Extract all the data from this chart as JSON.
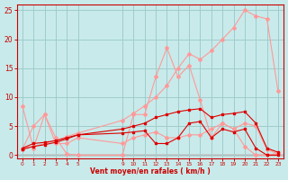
{
  "bg_color": "#c8eaea",
  "grid_color": "#a0cccc",
  "xlabel": "Vent moyen/en rafales ( km/h )",
  "ylim": [
    -0.5,
    26
  ],
  "xlim": [
    -0.5,
    23.5
  ],
  "yticks": [
    0,
    5,
    10,
    15,
    20,
    25
  ],
  "x_ticks": [
    0,
    1,
    2,
    3,
    4,
    5,
    9,
    10,
    11,
    12,
    13,
    14,
    15,
    16,
    17,
    18,
    19,
    20,
    21,
    22,
    23
  ],
  "line_light1_x": [
    0,
    1,
    2,
    3,
    4,
    5,
    9,
    10,
    11,
    12,
    13,
    14,
    15,
    16,
    17,
    18,
    19,
    20,
    21,
    22,
    23
  ],
  "line_light1_y": [
    8.5,
    1.2,
    7.0,
    3.0,
    0.2,
    0.0,
    0.0,
    7.0,
    7.0,
    13.5,
    18.5,
    13.5,
    15.5,
    9.5,
    3.0,
    5.5,
    4.5,
    1.5,
    0.0,
    0.0,
    0.3
  ],
  "line_light1_color": "#ff9999",
  "line_light2_x": [
    0,
    1,
    2,
    3,
    4,
    5,
    9,
    10,
    11,
    12,
    13,
    14,
    15,
    16,
    17,
    18,
    19,
    20,
    21,
    22,
    23
  ],
  "line_light2_y": [
    1.2,
    1.5,
    2.0,
    2.5,
    3.2,
    3.8,
    6.0,
    7.2,
    8.5,
    10.0,
    12.0,
    15.0,
    17.5,
    16.5,
    18.0,
    20.0,
    22.0,
    25.0,
    24.0,
    23.5,
    11.0
  ],
  "line_light2_color": "#ff9999",
  "line_med1_x": [
    0,
    1,
    2,
    3,
    4,
    5,
    9,
    10,
    11,
    12,
    13,
    14,
    15,
    16,
    17,
    18,
    19,
    20,
    21,
    22,
    23
  ],
  "line_med1_y": [
    1.0,
    5.0,
    7.0,
    2.0,
    2.0,
    3.0,
    2.0,
    3.0,
    3.5,
    4.0,
    3.0,
    3.0,
    3.5,
    3.5,
    4.5,
    5.5,
    4.5,
    5.5,
    5.0,
    1.0,
    0.2
  ],
  "line_med1_color": "#ff9999",
  "line_dark1_x": [
    0,
    1,
    2,
    3,
    4,
    5,
    9,
    10,
    11,
    12,
    13,
    14,
    15,
    16,
    17,
    18,
    19,
    20,
    21,
    22,
    23
  ],
  "line_dark1_y": [
    1.2,
    2.0,
    2.2,
    2.5,
    3.0,
    3.5,
    3.8,
    4.0,
    4.2,
    2.0,
    2.0,
    3.0,
    5.5,
    5.8,
    3.0,
    4.5,
    4.0,
    4.5,
    1.2,
    0.0,
    0.0
  ],
  "line_dark1_color": "#dd0000",
  "line_dark2_x": [
    0,
    1,
    2,
    3,
    4,
    5,
    9,
    10,
    11,
    12,
    13,
    14,
    15,
    16,
    17,
    18,
    19,
    20,
    21,
    22,
    23
  ],
  "line_dark2_y": [
    1.0,
    1.5,
    1.8,
    2.2,
    2.8,
    3.5,
    4.5,
    5.0,
    5.5,
    6.5,
    7.0,
    7.5,
    7.8,
    8.0,
    6.5,
    7.0,
    7.2,
    7.5,
    5.5,
    1.2,
    0.5
  ],
  "line_dark2_color": "#dd0000",
  "spine_color": "#cc0000",
  "tick_color": "#cc0000"
}
